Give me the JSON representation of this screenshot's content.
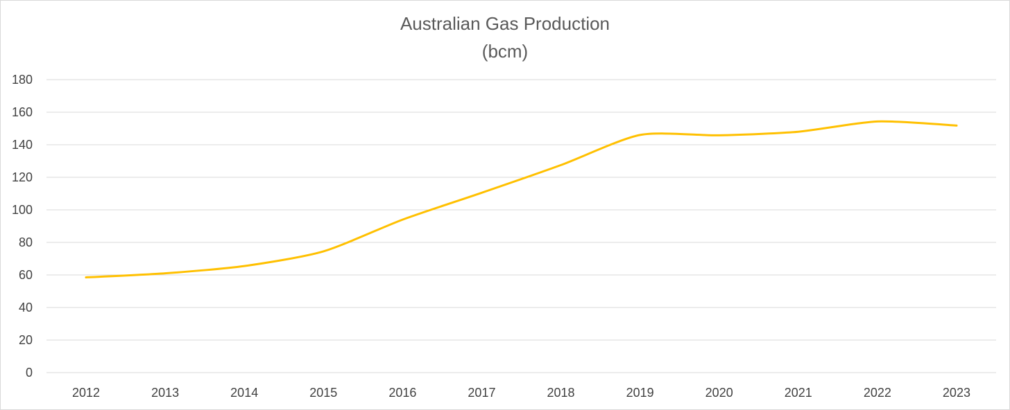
{
  "chart_data": {
    "type": "line",
    "title": "Australian Gas Production",
    "subtitle": "(bcm)",
    "xlabel": "",
    "ylabel": "",
    "categories": [
      "2012",
      "2013",
      "2014",
      "2015",
      "2016",
      "2017",
      "2018",
      "2019",
      "2020",
      "2021",
      "2022",
      "2023"
    ],
    "series": [
      {
        "color": "#FFC000",
        "values": [
          58.5,
          61,
          65.5,
          74.5,
          94,
          110.5,
          127.5,
          146,
          145.8,
          148,
          154.3,
          151.8
        ]
      }
    ],
    "ylim": [
      0,
      180
    ],
    "yticks": [
      0,
      20,
      40,
      60,
      80,
      100,
      120,
      140,
      160,
      180
    ],
    "grid": true,
    "legend": "none",
    "colors": {
      "gridline": "#d9d9d9",
      "axis_text": "#404040",
      "title_text": "#595959",
      "frame": "#d9d9d9"
    }
  }
}
